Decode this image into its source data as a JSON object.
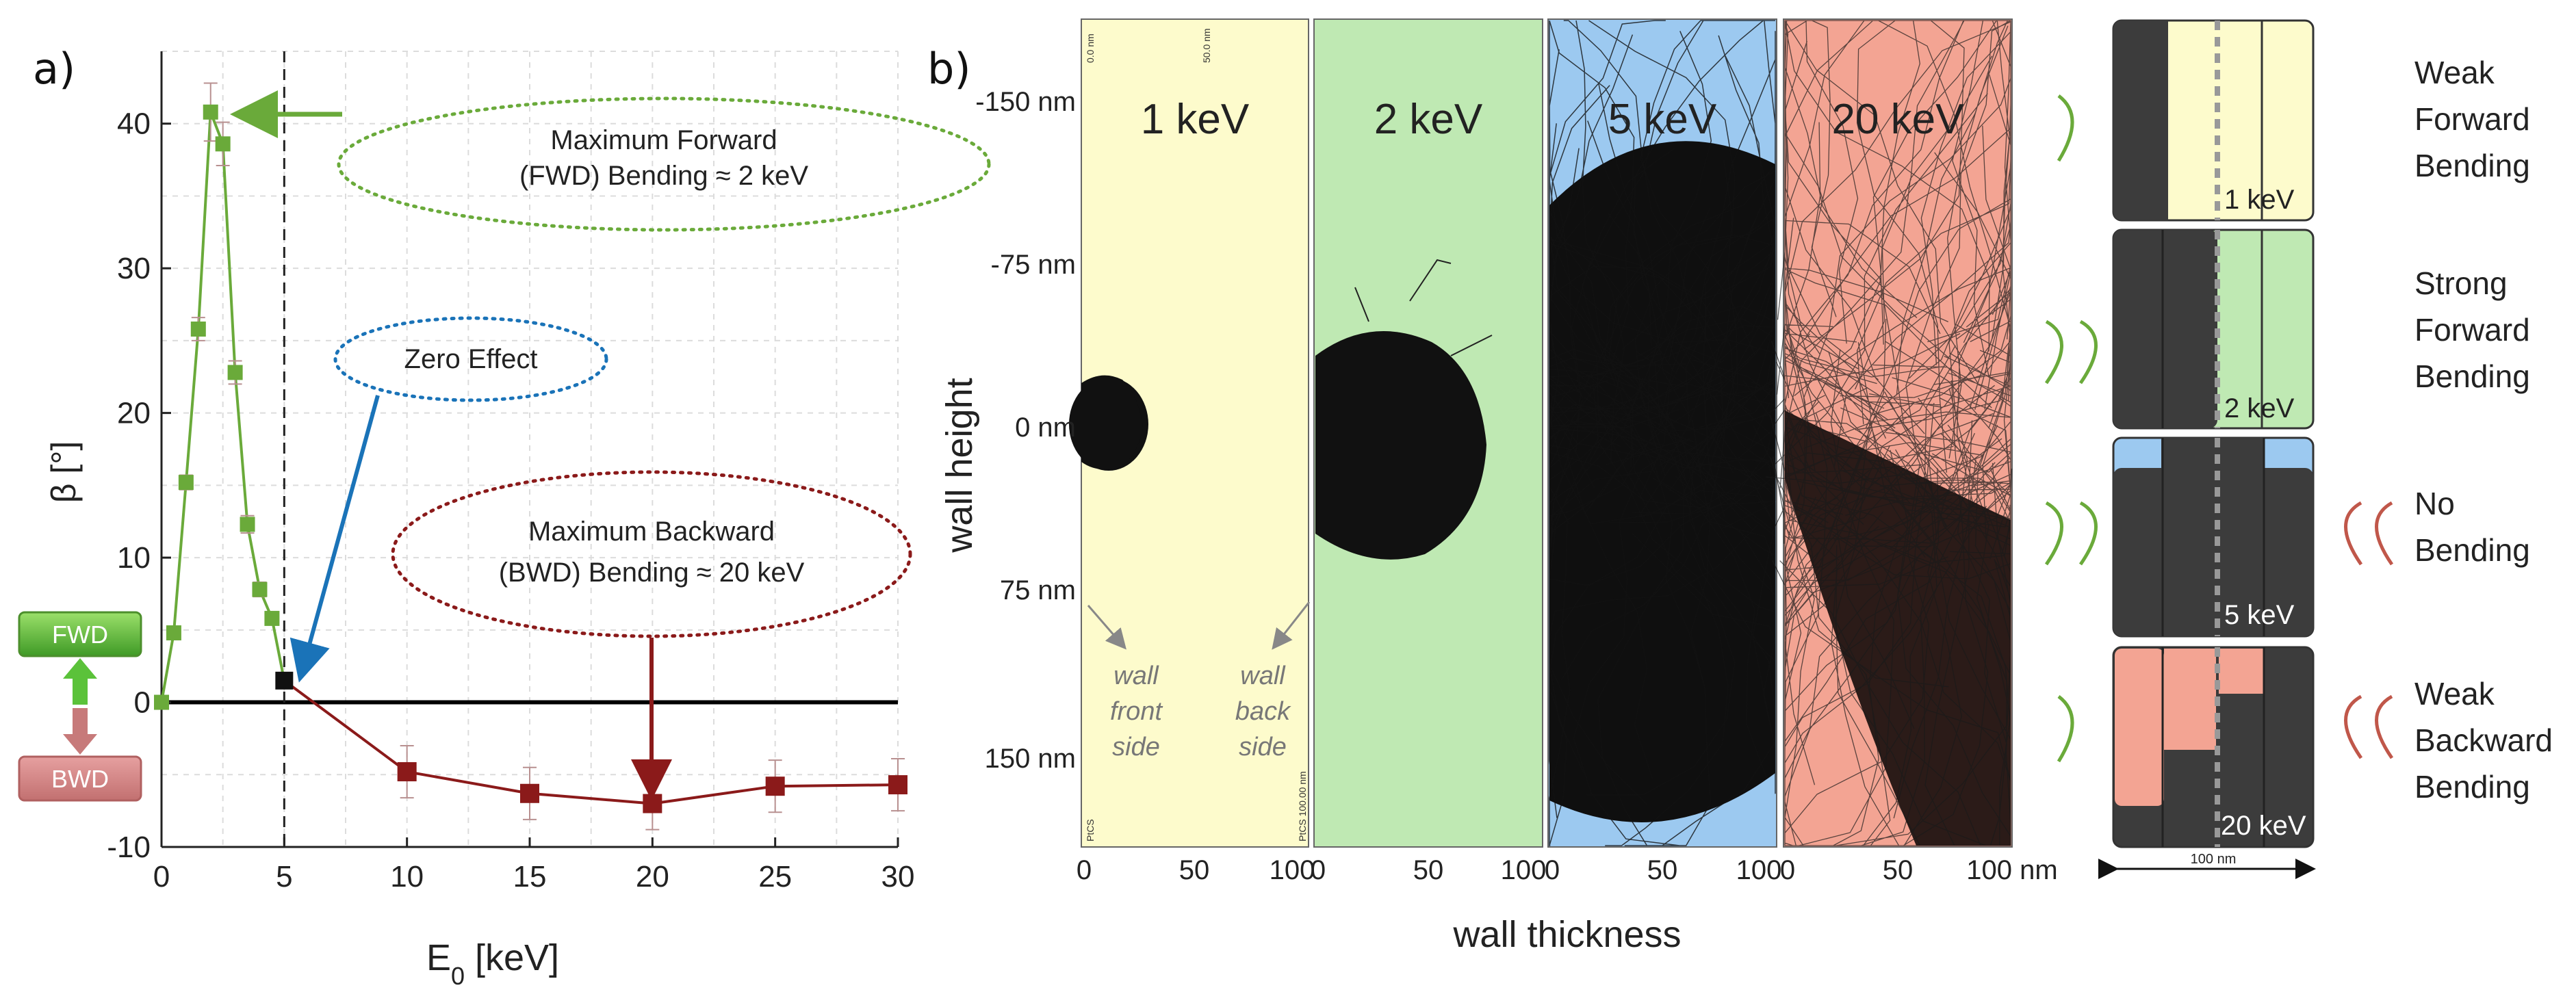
{
  "panel_a_label": "a)",
  "panel_b_label": "b)",
  "chart_data": [
    {
      "type": "line",
      "xlabel_base": "E",
      "xlabel_sub": "0",
      "xlabel_unit": " [keV]",
      "ylabel": "β [°]",
      "xlim": [
        0,
        30
      ],
      "ylim": [
        -10,
        45
      ],
      "xticks": [
        0,
        5,
        10,
        15,
        20,
        25,
        30
      ],
      "yticks": [
        -10,
        0,
        10,
        20,
        30,
        40
      ],
      "grid": true,
      "series": [
        {
          "name": "forward",
          "color": "#6aaa3a",
          "x": [
            0,
            0.5,
            1,
            1.5,
            2,
            2.5,
            3,
            3.5,
            4,
            4.5,
            5
          ],
          "y": [
            0,
            4.8,
            15.2,
            25.8,
            40.8,
            38.6,
            22.8,
            12.3,
            7.8,
            5.8,
            1.5
          ],
          "err": [
            0,
            0.4,
            0.5,
            0.8,
            2.0,
            1.5,
            0.8,
            0.6,
            0.5,
            0.4,
            0.3
          ]
        },
        {
          "name": "backward",
          "color": "#8b1a1a",
          "x": [
            5,
            10,
            15,
            20,
            25,
            30
          ],
          "y": [
            1.5,
            -4.8,
            -6.3,
            -7.0,
            -5.8,
            -5.7
          ],
          "err": [
            0,
            1.8,
            1.8,
            1.8,
            1.8,
            1.8
          ]
        }
      ],
      "zero_effect_point": {
        "x": 5,
        "y": 1.5
      },
      "vline_x": 5,
      "annotations": {
        "fwd_max_line1": "Maximum Forward",
        "fwd_max_line2": "(FWD) Bending ≈ 2 keV",
        "zero_effect": "Zero Effect",
        "bwd_max_line1": "Maximum Backward",
        "bwd_max_line2": "(BWD) Bending ≈ 20 keV",
        "fwd_box": "FWD",
        "bwd_box": "BWD"
      }
    },
    {
      "type": "other",
      "description_free": true,
      "ylabel": "wall height",
      "xlabel": "wall thickness",
      "yticks": [
        "-150 nm",
        "-75 nm",
        "0 nm",
        "75 nm",
        "150 nm"
      ],
      "panels": [
        {
          "label": "1 keV",
          "bg": "#fdfbcc",
          "xticks": [
            "0",
            "50",
            "100"
          ]
        },
        {
          "label": "2 keV",
          "bg": "#bfe9b3",
          "xticks": [
            "0",
            "50",
            "100"
          ]
        },
        {
          "label": "5 keV",
          "bg": "#9cc9f0",
          "xticks": [
            "0",
            "50",
            "100"
          ]
        },
        {
          "label": "20 keV",
          "bg": "#f3a493",
          "xticks": [
            "0",
            "50",
            "100 nm"
          ]
        }
      ],
      "wall_front": [
        "wall",
        "front",
        "side"
      ],
      "wall_back": [
        "wall",
        "back",
        "side"
      ],
      "tiny_top_left": "0.0 nm",
      "tiny_top_mid": "50.0 nm",
      "tiny_bottom_left": "PtCS",
      "tiny_bottom_right": "PtCS 100.00 nm"
    }
  ],
  "schematic": {
    "items": [
      {
        "energy": "1 keV",
        "label": [
          "Weak",
          "Forward",
          "Bending"
        ]
      },
      {
        "energy": "2 keV",
        "label": [
          "Strong",
          "Forward",
          "Bending"
        ]
      },
      {
        "energy": "5 keV",
        "label": [
          "No",
          "Bending"
        ]
      },
      {
        "energy": "20 keV",
        "label": [
          "Weak",
          "Backward",
          "Bending"
        ]
      }
    ],
    "scale": "100 nm"
  },
  "colors": {
    "green": "#6aaa3a",
    "darkred": "#8b1a1a",
    "blue": "#1a73b8",
    "wall": "#3c3c3c"
  }
}
